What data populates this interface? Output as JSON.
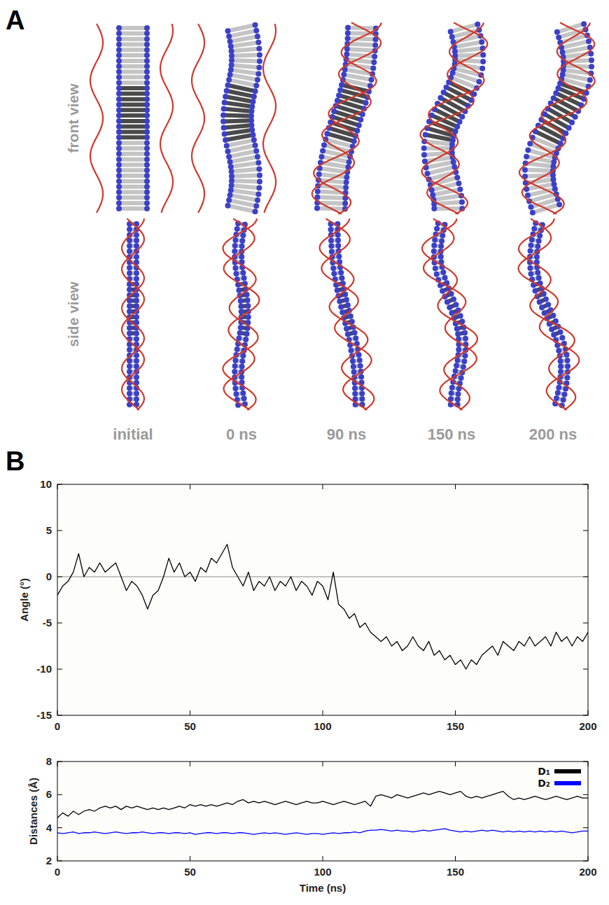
{
  "figure": {
    "panel_labels": [
      "A",
      "B"
    ],
    "view_labels": [
      "front view",
      "side view"
    ],
    "frame_labels": [
      "initial",
      "0 ns",
      "90 ns",
      "150 ns",
      "200 ns"
    ]
  },
  "chart_data": [
    {
      "type": "line",
      "y_label": "Angle (°)",
      "x": [
        0,
        2,
        4,
        6,
        8,
        10,
        12,
        14,
        16,
        18,
        20,
        22,
        24,
        26,
        28,
        30,
        32,
        34,
        36,
        38,
        40,
        42,
        44,
        46,
        48,
        50,
        52,
        54,
        56,
        58,
        60,
        62,
        64,
        66,
        68,
        70,
        72,
        74,
        76,
        78,
        80,
        82,
        84,
        86,
        88,
        90,
        92,
        94,
        96,
        98,
        100,
        102,
        104,
        106,
        108,
        110,
        112,
        114,
        116,
        118,
        120,
        122,
        124,
        126,
        128,
        130,
        132,
        134,
        136,
        138,
        140,
        142,
        144,
        146,
        148,
        150,
        152,
        154,
        156,
        158,
        160,
        162,
        164,
        166,
        168,
        170,
        172,
        174,
        176,
        178,
        180,
        182,
        184,
        186,
        188,
        190,
        192,
        194,
        196,
        198,
        200
      ],
      "xlim": [
        0,
        200
      ],
      "xticks": [
        0,
        50,
        100,
        150,
        200
      ],
      "ylim": [
        -15,
        10
      ],
      "yticks": [
        -15,
        -10,
        -5,
        0,
        5,
        10
      ],
      "grid": false,
      "series": [
        {
          "color": "#000000",
          "values": [
            -2,
            -1,
            -0.5,
            0.5,
            2.5,
            0,
            1,
            0.5,
            1.5,
            0.5,
            1,
            1.5,
            0,
            -1.5,
            -0.5,
            -1,
            -2,
            -3.5,
            -2,
            -1.5,
            0,
            2,
            0.5,
            1.5,
            0,
            0.5,
            -0.5,
            1,
            0.5,
            2,
            1.5,
            2.5,
            3.5,
            1,
            0,
            -1,
            0.5,
            -1.5,
            -0.5,
            -1,
            0,
            -1.5,
            -0.5,
            -1,
            0,
            -1.5,
            -0.5,
            -1,
            -2,
            -0.5,
            -1,
            -2.5,
            0.5,
            -3,
            -3.5,
            -4.5,
            -4,
            -5.5,
            -5,
            -6,
            -6.5,
            -7,
            -6.5,
            -7.5,
            -7,
            -8,
            -7.5,
            -6.5,
            -7.5,
            -8,
            -7,
            -8.5,
            -8,
            -9,
            -8.5,
            -9.5,
            -9,
            -10,
            -9,
            -9.5,
            -8.5,
            -8,
            -7.5,
            -8.5,
            -7,
            -7.5,
            -8,
            -7,
            -7.5,
            -6.5,
            -7.5,
            -7,
            -6.5,
            -7.5,
            -6,
            -7,
            -6.5,
            -7.5,
            -6.5,
            -7,
            -6
          ]
        }
      ]
    },
    {
      "type": "line",
      "x_label": "Time (ns)",
      "y_label": "Distances (Å)",
      "x": [
        0,
        2,
        4,
        6,
        8,
        10,
        12,
        14,
        16,
        18,
        20,
        22,
        24,
        26,
        28,
        30,
        32,
        34,
        36,
        38,
        40,
        42,
        44,
        46,
        48,
        50,
        52,
        54,
        56,
        58,
        60,
        62,
        64,
        66,
        68,
        70,
        72,
        74,
        76,
        78,
        80,
        82,
        84,
        86,
        88,
        90,
        92,
        94,
        96,
        98,
        100,
        102,
        104,
        106,
        108,
        110,
        112,
        114,
        116,
        118,
        120,
        122,
        124,
        126,
        128,
        130,
        132,
        134,
        136,
        138,
        140,
        142,
        144,
        146,
        148,
        150,
        152,
        154,
        156,
        158,
        160,
        162,
        164,
        166,
        168,
        170,
        172,
        174,
        176,
        178,
        180,
        182,
        184,
        186,
        188,
        190,
        192,
        194,
        196,
        198,
        200
      ],
      "xlim": [
        0,
        200
      ],
      "xticks": [
        0,
        50,
        100,
        150,
        200
      ],
      "ylim": [
        2,
        8
      ],
      "yticks": [
        2,
        4,
        6,
        8
      ],
      "grid": false,
      "legend": "top-right",
      "series": [
        {
          "name": "D₁",
          "color": "#000000",
          "values": [
            4.6,
            4.9,
            4.7,
            5.0,
            4.8,
            5.0,
            5.1,
            5.0,
            5.2,
            5.3,
            5.2,
            5.3,
            5.1,
            5.3,
            5.2,
            5.3,
            5.2,
            5.1,
            5.2,
            5.1,
            5.2,
            5.1,
            5.2,
            5.3,
            5.2,
            5.4,
            5.3,
            5.4,
            5.3,
            5.4,
            5.3,
            5.4,
            5.5,
            5.4,
            5.6,
            5.7,
            5.5,
            5.6,
            5.5,
            5.6,
            5.5,
            5.4,
            5.5,
            5.6,
            5.5,
            5.4,
            5.5,
            5.6,
            5.5,
            5.5,
            5.6,
            5.5,
            5.4,
            5.5,
            5.6,
            5.5,
            5.4,
            5.5,
            5.6,
            5.3,
            5.9,
            6.0,
            5.9,
            5.8,
            6.0,
            5.9,
            5.8,
            5.9,
            6.0,
            6.1,
            6.0,
            6.1,
            6.2,
            6.1,
            6.0,
            6.1,
            6.2,
            5.9,
            5.8,
            5.9,
            5.8,
            5.9,
            6.0,
            6.1,
            6.2,
            5.9,
            5.7,
            5.8,
            5.7,
            5.8,
            5.9,
            5.8,
            5.7,
            5.8,
            5.9,
            5.8,
            5.7,
            5.8,
            5.9,
            5.8,
            5.8
          ]
        },
        {
          "name": "D₂",
          "color": "#0000ff",
          "values": [
            3.7,
            3.65,
            3.7,
            3.75,
            3.65,
            3.7,
            3.7,
            3.75,
            3.7,
            3.65,
            3.7,
            3.75,
            3.7,
            3.65,
            3.7,
            3.7,
            3.75,
            3.7,
            3.65,
            3.7,
            3.7,
            3.65,
            3.7,
            3.7,
            3.65,
            3.7,
            3.6,
            3.65,
            3.7,
            3.7,
            3.65,
            3.7,
            3.7,
            3.65,
            3.7,
            3.7,
            3.65,
            3.6,
            3.65,
            3.7,
            3.65,
            3.7,
            3.65,
            3.6,
            3.65,
            3.7,
            3.65,
            3.6,
            3.65,
            3.65,
            3.6,
            3.65,
            3.7,
            3.65,
            3.7,
            3.7,
            3.75,
            3.7,
            3.8,
            3.85,
            3.85,
            3.9,
            3.85,
            3.8,
            3.85,
            3.8,
            3.8,
            3.75,
            3.8,
            3.85,
            3.8,
            3.85,
            3.9,
            3.95,
            3.85,
            3.8,
            3.75,
            3.8,
            3.75,
            3.8,
            3.85,
            3.8,
            3.85,
            3.8,
            3.75,
            3.8,
            3.75,
            3.8,
            3.75,
            3.8,
            3.75,
            3.8,
            3.75,
            3.8,
            3.75,
            3.8,
            3.75,
            3.7,
            3.75,
            3.8,
            3.8
          ]
        }
      ]
    }
  ]
}
